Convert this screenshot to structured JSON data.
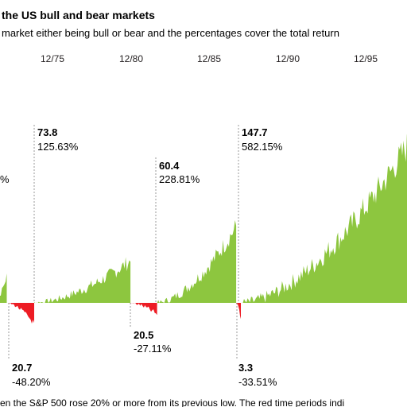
{
  "chart_data": {
    "type": "area",
    "title": "the US bull and bear markets",
    "subtitle": "market either being bull or bear and the percentages cover the total return",
    "footnote": "en the S&P 500 rose 20% or more from its previous low. The red time periods indi",
    "x_ticks": [
      "12/75",
      "12/80",
      "12/85",
      "12/90",
      "12/95"
    ],
    "colors": {
      "bull": "#8dc63f",
      "bear": "#ed1c24",
      "text": "#231f20",
      "divider": "#999999"
    },
    "partial_label": "%",
    "bull_markets": [
      {
        "start_value": "73.8",
        "gain": "125.63%",
        "start_year": 1974.75,
        "end_year": 1980.9,
        "peak_rel": 1.26
      },
      {
        "start_value": "60.4",
        "gain": "228.81%",
        "start_year": 1982.6,
        "end_year": 1987.65,
        "peak_rel": 2.29
      },
      {
        "start_value": "147.7",
        "gain": "582.15%",
        "start_year": 1988.0,
        "end_year": 2000.0,
        "peak_rel": 5.82
      }
    ],
    "bear_markets": [
      {
        "trough_value": "20.7",
        "loss": "-48.20%",
        "start_year": 1973.0,
        "end_year": 1974.75,
        "trough_rel": -0.48
      },
      {
        "trough_value": "20.5",
        "loss": "-27.11%",
        "start_year": 1980.9,
        "end_year": 1982.6,
        "trough_rel": -0.27
      },
      {
        "trough_value": "3.3",
        "loss": "-33.51%",
        "start_year": 1987.65,
        "end_year": 1987.95,
        "trough_rel": -0.34
      }
    ]
  }
}
